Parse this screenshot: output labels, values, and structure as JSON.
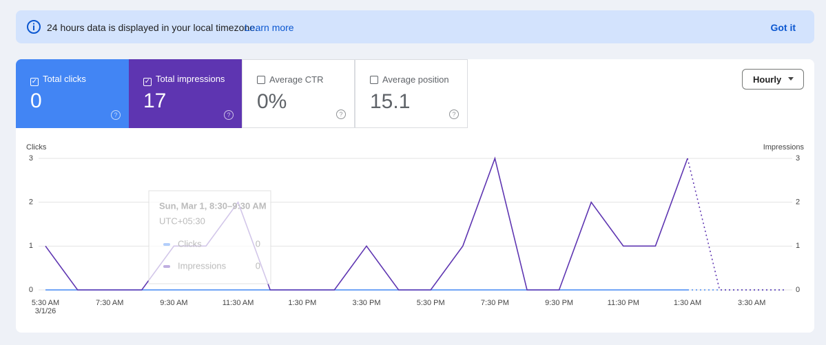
{
  "banner": {
    "message": "24 hours data is displayed in your local timezone.",
    "link": "Learn more",
    "dismiss": "Got it"
  },
  "metrics": [
    {
      "label": "Total clicks",
      "value": 0,
      "checked": true,
      "color": "#4285f4"
    },
    {
      "label": "Total impressions",
      "value": 17,
      "checked": true,
      "color": "#5e35b1"
    },
    {
      "label": "Average CTR",
      "value": 0,
      "value_label": "0%",
      "checked": false,
      "color": "#ffffff"
    },
    {
      "label": "Average position",
      "value": 15.1,
      "checked": false,
      "color": "#ffffff"
    }
  ],
  "dropdown": "Hourly",
  "chart_data": {
    "type": "line",
    "y_label": "Clicks",
    "y2_label": "Impressions",
    "categories": [
      "5:30 AM",
      null,
      "7:30 AM",
      null,
      "9:30 AM",
      null,
      "11:30 AM",
      null,
      "1:30 PM",
      null,
      "3:30 PM",
      null,
      "5:30 PM",
      null,
      "7:30 PM",
      null,
      "9:30 PM",
      null,
      "11:30 PM",
      null,
      "1:30 AM",
      null,
      "3:30 AM",
      null
    ],
    "first_category_date": "3/1/26",
    "series": [
      {
        "name": "Clicks",
        "color": "#4285f4",
        "values": [
          0,
          0,
          0,
          0,
          0,
          0,
          0,
          0,
          0,
          0,
          0,
          0,
          0,
          0,
          0,
          0,
          0,
          0,
          0,
          0,
          0,
          0,
          0,
          0
        ]
      },
      {
        "name": "Impressions",
        "color": "#5e35b1",
        "axis": "y2",
        "values": [
          1,
          0,
          0,
          0,
          1,
          1,
          2,
          0,
          0,
          0,
          1,
          0,
          0,
          1,
          3,
          0,
          0,
          2,
          1,
          1,
          3,
          0,
          0,
          0
        ]
      }
    ],
    "dotted_from": 20,
    "ylim": [
      0,
      3
    ],
    "yticks": [
      0,
      1,
      2,
      3
    ],
    "y2lim": [
      0,
      3
    ],
    "y2ticks": [
      0,
      1,
      2,
      3
    ],
    "grid": true,
    "tooltip": {
      "title": "Sun, Mar 1, 8:30–9:30 AM",
      "subtitle": "UTC+05:30",
      "rows": [
        {
          "name": "Clicks",
          "value": 0
        },
        {
          "name": "Impressions",
          "value": 0
        }
      ]
    }
  }
}
